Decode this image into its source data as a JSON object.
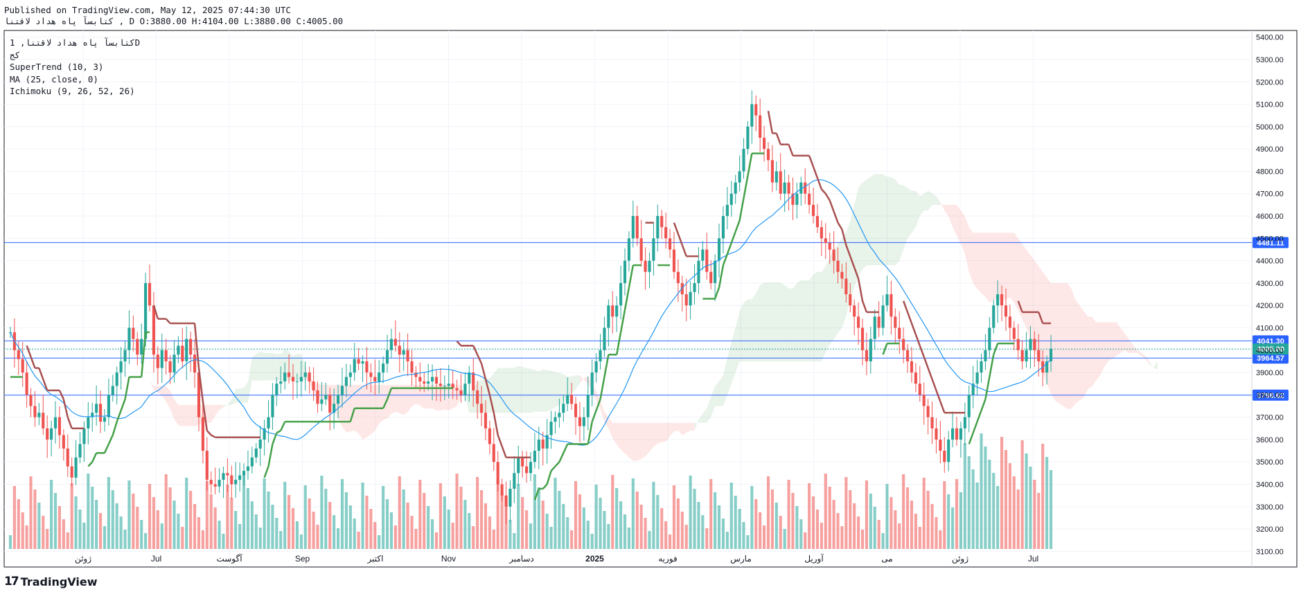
{
  "header": {
    "published": "Published on TradingView.com, May 12, 2025 07:44:30 UTC",
    "symbol_line": "کتابسآ پاه هداد لاقتنا , D O:3880.00 H:4104.00 L:3880.00 C:4005.00"
  },
  "legend": {
    "symbol": "کتابسآ پاه هداد لاقتنا, 1D",
    "sub": "کج",
    "indicators": [
      "SuperTrend (10, 3)",
      "MA (25, close, 0)",
      "Ichimoku (9, 26, 52, 26)"
    ]
  },
  "brand": {
    "name": "TradingView",
    "logo_glyph": "17"
  },
  "colors": {
    "up": "#26a69a",
    "down": "#ef5350",
    "ma": "#2196f3",
    "supertrend_up": "#43a047",
    "supertrend_down": "#a84f4f",
    "hline": "#2962ff",
    "last_price": "#26a69a"
  },
  "chart_data": {
    "type": "candlestick",
    "interval": "1D",
    "ohlc_last": {
      "open": 3880.0,
      "high": 4104.0,
      "low": 3880.0,
      "close": 4005.0
    },
    "y_ticks": [
      3100,
      3200,
      3300,
      3400,
      3500,
      3600,
      3700,
      3800,
      3900,
      4000,
      4100,
      4200,
      4300,
      4400,
      4500,
      4600,
      4700,
      4800,
      4900,
      5000,
      5100,
      5200,
      5300,
      5400
    ],
    "y_tick_labels": [
      "3100.00",
      "3200.00",
      "3300.00",
      "3400.00",
      "3500.00",
      "3600.00",
      "3700.00",
      "3800.00",
      "3900.00",
      "4000.00",
      "4100.00",
      "4200.00",
      "4300.00",
      "4400.00",
      "4500.00",
      "4600.00",
      "4700.00",
      "4800.00",
      "4900.00",
      "5000.00",
      "5100.00",
      "5200.00",
      "5300.00",
      "5400.00"
    ],
    "ylim": [
      3030,
      5430
    ],
    "x_labels": [
      {
        "text": "ژوئن",
        "bold": false
      },
      {
        "text": "Jul",
        "bold": false
      },
      {
        "text": "آگوست",
        "bold": false
      },
      {
        "text": "Sep",
        "bold": false
      },
      {
        "text": "اکتبر",
        "bold": false
      },
      {
        "text": "Nov",
        "bold": false
      },
      {
        "text": "دسامبر",
        "bold": false
      },
      {
        "text": "2025",
        "bold": true
      },
      {
        "text": "فوریه",
        "bold": false
      },
      {
        "text": "مارس",
        "bold": false
      },
      {
        "text": "آوریل",
        "bold": false
      },
      {
        "text": "می",
        "bold": false
      },
      {
        "text": "ژوئن",
        "bold": false
      },
      {
        "text": "Jul",
        "bold": false
      }
    ],
    "horizontal_lines": [
      {
        "value": 4481.11,
        "label": "4481.11"
      },
      {
        "value": 4041.3,
        "label": "4041.30"
      },
      {
        "value": 3964.57,
        "label": "3964.57"
      },
      {
        "value": 3798.62,
        "label": "3798.62"
      }
    ],
    "last_price": {
      "value": 4005.0,
      "label": "4005.00"
    },
    "candles_close": [
      4080,
      4000,
      3960,
      3900,
      3800,
      3750,
      3700,
      3720,
      3650,
      3600,
      3650,
      3700,
      3620,
      3560,
      3480,
      3430,
      3520,
      3580,
      3650,
      3700,
      3720,
      3760,
      3680,
      3700,
      3800,
      3840,
      3900,
      3950,
      4000,
      4100,
      4050,
      3980,
      4050,
      4300,
      4200,
      3980,
      3920,
      4000,
      3950,
      3900,
      3980,
      4020,
      3950,
      4050,
      3980,
      3900,
      3700,
      3550,
      3420,
      3400,
      3390,
      3420,
      3450,
      3440,
      3400,
      3420,
      3440,
      3460,
      3480,
      3520,
      3560,
      3600,
      3650,
      3700,
      3800,
      3850,
      3860,
      3900,
      3880,
      3860,
      3860,
      3880,
      3900,
      3860,
      3820,
      3760,
      3780,
      3800,
      3720,
      3760,
      3800,
      3840,
      3880,
      3900,
      3960,
      3940,
      3950,
      3900,
      3880,
      3860,
      3900,
      3940,
      4000,
      4050,
      4020,
      3980,
      4000,
      3950,
      3900,
      3880,
      3860,
      3850,
      3860,
      3880,
      3850,
      3840,
      3840,
      3850,
      3830,
      3820,
      3800,
      3850,
      3900,
      3820,
      3760,
      3720,
      3650,
      3580,
      3500,
      3400,
      3350,
      3300,
      3380,
      3450,
      3520,
      3480,
      3450,
      3500,
      3550,
      3600,
      3560,
      3620,
      3680,
      3700,
      3720,
      3760,
      3800,
      3760,
      3700,
      3660,
      3700,
      3800,
      3900,
      3950,
      4000,
      4100,
      4200,
      4150,
      4200,
      4300,
      4400,
      4500,
      4600,
      4500,
      4400,
      4350,
      4400,
      4500,
      4600,
      4550,
      4500,
      4450,
      4350,
      4300,
      4250,
      4200,
      4260,
      4300,
      4400,
      4450,
      4350,
      4300,
      4400,
      4500,
      4600,
      4650,
      4700,
      4750,
      4800,
      4900,
      5000,
      5100,
      5050,
      4950,
      4900,
      4850,
      4750,
      4800,
      4700,
      4750,
      4700,
      4650,
      4700,
      4750,
      4700,
      4650,
      4600,
      4550,
      4500,
      4480,
      4450,
      4400,
      4350,
      4320,
      4250,
      4200,
      4150,
      4100,
      4000,
      3950,
      4050,
      4150,
      4100,
      4200,
      4250,
      4150,
      4100,
      4050,
      4000,
      3950,
      3900,
      3850,
      3800,
      3750,
      3700,
      3650,
      3600,
      3550,
      3500,
      3600,
      3650,
      3600,
      3650,
      3700,
      3800,
      3850,
      3900,
      3950,
      4000,
      4100,
      4200,
      4250,
      4200,
      4150,
      4100,
      4050,
      4000,
      3950,
      4000,
      4050,
      4000,
      3950,
      3900,
      3950,
      4005
    ],
    "volume_max": 3630
  }
}
